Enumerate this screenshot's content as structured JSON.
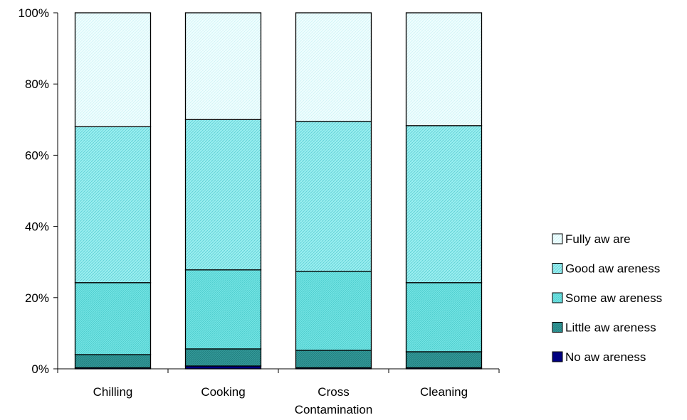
{
  "chart_data": {
    "type": "bar",
    "stacked": true,
    "percent": true,
    "categories": [
      "Chilling",
      "Cooking",
      "Cross\nContamination",
      "Cleaning"
    ],
    "series": [
      {
        "name": "No aw areness",
        "values": [
          0.3,
          0.8,
          0.3,
          0.3
        ],
        "color": "#000080",
        "pattern": "solid"
      },
      {
        "name": "Little aw areness",
        "values": [
          3.7,
          4.8,
          4.9,
          4.5
        ],
        "color": "#339999",
        "pattern": "dense"
      },
      {
        "name": "Some aw areness",
        "values": [
          20.2,
          22.2,
          22.2,
          19.4
        ],
        "color": "#66e0e0",
        "pattern": "medium"
      },
      {
        "name": "Good aw areness",
        "values": [
          43.8,
          42.2,
          42.1,
          44.1
        ],
        "color": "#8ae8ea",
        "pattern": "diagonal"
      },
      {
        "name": "Fully aw are",
        "values": [
          32.0,
          30.0,
          30.5,
          31.7
        ],
        "color": "#e6fbfc",
        "pattern": "light"
      }
    ],
    "ylim": [
      0,
      100
    ],
    "yticks": [
      "0%",
      "20%",
      "40%",
      "60%",
      "80%",
      "100%"
    ],
    "legend_position": "right",
    "grid": false,
    "xlabel": "",
    "ylabel": "",
    "title": ""
  }
}
